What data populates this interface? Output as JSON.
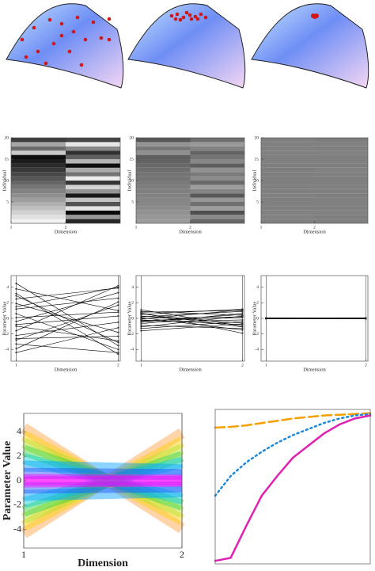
{
  "chart_data": [
    {
      "type": "heatmap",
      "ylabel": "Individual",
      "xlabel": "Dimension",
      "xticks": [
        1,
        2
      ],
      "yticks": [
        5,
        10,
        15,
        20
      ],
      "xlim": [
        1,
        3
      ],
      "ylim": [
        0,
        20
      ],
      "zlim": [
        -5,
        5
      ],
      "values": [
        [
          4.5,
          3.8,
          3.2,
          2.5,
          1.9,
          1.2,
          0.6,
          0.1,
          -0.4,
          -1.0,
          -1.6,
          -2.2,
          -2.8,
          -3.3,
          -3.9,
          -4.4,
          2.9,
          -0.8,
          1.5,
          -2.6
        ],
        [
          -3.5,
          1.0,
          -4.6,
          3.9,
          -1.8,
          2.6,
          -4.0,
          0.8,
          3.3,
          -2.9,
          4.2,
          -0.5,
          1.7,
          -4.4,
          2.1,
          -1.2,
          -3.1,
          0.3,
          4.0,
          -2.3
        ]
      ]
    },
    {
      "type": "heatmap",
      "ylabel": "Individual",
      "xlabel": "Dimension",
      "xticks": [
        1,
        2
      ],
      "yticks": [
        5,
        10,
        15,
        20
      ],
      "xlim": [
        1,
        3
      ],
      "ylim": [
        0,
        20
      ],
      "zlim": [
        -5,
        5
      ],
      "values": [
        [
          1.1,
          0.9,
          0.7,
          0.5,
          0.3,
          0.2,
          0.1,
          0.0,
          -0.1,
          -0.2,
          -0.4,
          -0.5,
          -0.7,
          -0.9,
          -1.1,
          -1.3,
          0.6,
          -0.3,
          0.8,
          -1.6
        ],
        [
          -1.0,
          0.4,
          -1.9,
          1.2,
          -0.6,
          0.9,
          -1.5,
          0.2,
          1.1,
          -0.8,
          0.5,
          -0.2,
          0.7,
          -1.3,
          0.3,
          -0.4,
          -1.1,
          0.1,
          1.0,
          -0.7
        ]
      ]
    },
    {
      "type": "heatmap",
      "ylabel": "Individual",
      "xlabel": "Dimension",
      "xticks": [
        1,
        2
      ],
      "yticks": [
        5,
        10,
        15,
        20
      ],
      "xlim": [
        1,
        3
      ],
      "ylim": [
        0,
        20
      ],
      "zlim": [
        -5,
        5
      ],
      "values": [
        [
          0.06,
          0.05,
          0.04,
          0.03,
          0.02,
          0.01,
          0,
          0,
          -0.01,
          -0.02,
          -0.03,
          -0.04,
          -0.05,
          -0.06,
          0.02,
          -0.01,
          0.03,
          0.01,
          -0.02,
          0
        ],
        [
          0.02,
          -0.04,
          0.05,
          -0.03,
          0.01,
          0.04,
          -0.05,
          0.02,
          0.03,
          -0.01,
          -0.02,
          0.0,
          0.04,
          -0.06,
          0.01,
          -0.03,
          0.05,
          -0.02,
          0.03,
          -0.04
        ]
      ]
    },
    {
      "type": "parallel",
      "ylabel": "Parameter Value",
      "xlabel": "Dimension",
      "xticks": [
        1,
        2
      ],
      "yticks": [
        -4,
        -2,
        0,
        2,
        4
      ],
      "xlim": [
        0.95,
        2.02
      ],
      "ylim": [
        -5.5,
        5.5
      ],
      "color": "#000000",
      "values": [
        [
          4.5,
          3.8,
          3.2,
          2.5,
          1.9,
          1.2,
          0.6,
          0.1,
          -0.4,
          -1.0,
          -1.6,
          -2.2,
          -2.8,
          -3.3,
          -3.9,
          -4.4,
          2.9,
          -0.8,
          1.5,
          -2.6
        ],
        [
          -3.5,
          1.0,
          -4.6,
          3.9,
          -1.8,
          2.6,
          -4.0,
          0.8,
          3.3,
          -2.9,
          4.2,
          -0.5,
          1.7,
          -4.4,
          2.1,
          -1.2,
          -3.1,
          0.3,
          4.0,
          -2.3
        ]
      ]
    },
    {
      "type": "parallel",
      "ylabel": "Parameter Value",
      "xlabel": "Dimension",
      "xticks": [
        1,
        2
      ],
      "yticks": [
        -4,
        -2,
        0,
        2,
        4
      ],
      "xlim": [
        0.95,
        2.02
      ],
      "ylim": [
        -5.5,
        5.5
      ],
      "color": "#000000",
      "values": [
        [
          1.1,
          0.9,
          0.7,
          0.5,
          0.3,
          0.2,
          0.1,
          0.0,
          -0.1,
          -0.2,
          -0.4,
          -0.5,
          -0.7,
          -0.9,
          -1.1,
          -1.3,
          0.6,
          -0.3,
          0.8,
          -1.6
        ],
        [
          -1.0,
          0.4,
          -1.9,
          1.2,
          -0.6,
          0.9,
          -1.5,
          0.2,
          1.1,
          -0.8,
          0.5,
          -0.2,
          0.7,
          -1.3,
          0.3,
          -0.4,
          -1.1,
          0.1,
          1.0,
          -0.7
        ]
      ]
    },
    {
      "type": "parallel",
      "ylabel": "Parameter Value",
      "xlabel": "Dimension",
      "xticks": [
        1,
        2
      ],
      "yticks": [
        -4,
        -2,
        0,
        2,
        4
      ],
      "xlim": [
        0.95,
        2.02
      ],
      "ylim": [
        -5.5,
        5.5
      ],
      "color": "#000000",
      "values": [
        [
          0.06,
          0.05,
          0.04,
          0.03,
          0.02,
          0.01,
          0,
          0,
          -0.01,
          -0.02,
          -0.03,
          -0.04,
          -0.05,
          -0.06,
          0.02,
          -0.01,
          0.03,
          0.01,
          -0.02,
          0
        ],
        [
          0.02,
          -0.04,
          0.05,
          -0.03,
          0.01,
          0.04,
          -0.05,
          0.02,
          0.03,
          -0.01,
          -0.02,
          0.0,
          0.04,
          -0.06,
          0.01,
          -0.03,
          0.05,
          -0.02,
          0.03,
          -0.04
        ]
      ]
    },
    {
      "type": "parallel",
      "ylabel": "Parameter Value",
      "xlabel": "Dimension",
      "xticks": [
        1,
        2
      ],
      "yticks": [
        -4,
        -2,
        0,
        2,
        4
      ],
      "xlim": [
        1,
        2
      ],
      "ylim": [
        -5.5,
        5.5
      ],
      "series": [
        {
          "color": "#ffa040",
          "values": [
            4.3,
            -3.9
          ]
        },
        {
          "color": "#ffa040",
          "values": [
            -4.3,
            3.9
          ]
        },
        {
          "color": "#ffd000",
          "values": [
            3.7,
            -3.2
          ]
        },
        {
          "color": "#ffd000",
          "values": [
            -3.7,
            3.2
          ]
        },
        {
          "color": "#b0e020",
          "values": [
            3.1,
            -2.6
          ]
        },
        {
          "color": "#b0e020",
          "values": [
            -3.1,
            2.6
          ]
        },
        {
          "color": "#30d030",
          "values": [
            2.5,
            -2.0
          ]
        },
        {
          "color": "#30d030",
          "values": [
            -2.5,
            2.0
          ]
        },
        {
          "color": "#00d0d0",
          "values": [
            1.8,
            -1.5
          ]
        },
        {
          "color": "#00d0d0",
          "values": [
            -1.8,
            1.5
          ]
        },
        {
          "color": "#00a0ff",
          "values": [
            1.2,
            0.9
          ]
        },
        {
          "color": "#00a0ff",
          "values": [
            -1.2,
            -0.9
          ]
        },
        {
          "color": "#2050ff",
          "values": [
            0.6,
            0.5
          ]
        },
        {
          "color": "#2050ff",
          "values": [
            -0.6,
            -0.5
          ]
        },
        {
          "color": "#ff00ff",
          "values": [
            0.1,
            0.05
          ]
        },
        {
          "color": "#ff00ff",
          "values": [
            -0.1,
            -0.05
          ]
        }
      ]
    },
    {
      "type": "line",
      "x": [
        0,
        0.1,
        0.2,
        0.3,
        0.4,
        0.5,
        0.6,
        0.7,
        0.8,
        0.9,
        1
      ],
      "xlim": [
        0,
        1
      ],
      "ylim": [
        0,
        1.02
      ],
      "series": [
        {
          "color": "#f5a000",
          "style": "dashed",
          "values": [
            0.9,
            0.905,
            0.915,
            0.93,
            0.945,
            0.96,
            0.97,
            0.98,
            0.985,
            0.99,
            0.995
          ]
        },
        {
          "color": "#1e88d8",
          "style": "dotted",
          "values": [
            0.45,
            0.58,
            0.67,
            0.74,
            0.8,
            0.85,
            0.89,
            0.93,
            0.96,
            0.98,
            0.99
          ]
        },
        {
          "color": "#e020b0",
          "style": "solid",
          "values": [
            0.02,
            0.04,
            0.25,
            0.45,
            0.58,
            0.7,
            0.78,
            0.86,
            0.92,
            0.96,
            0.98
          ]
        }
      ]
    }
  ]
}
